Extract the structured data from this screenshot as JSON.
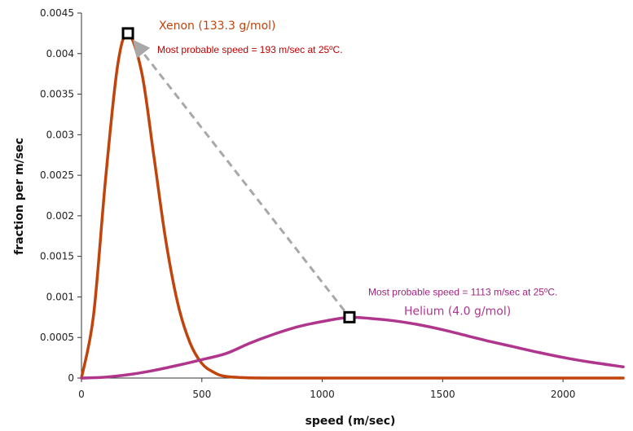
{
  "chart_data": {
    "type": "line",
    "title": "",
    "xlabel": "speed (m/sec)",
    "ylabel": "fraction per m/sec",
    "xlim": [
      0,
      2250
    ],
    "ylim": [
      0,
      0.0045
    ],
    "x_ticks": [
      0,
      500,
      1000,
      1500,
      2000
    ],
    "x_tick_labels": [
      "0",
      "500",
      "1000",
      "1500",
      "2000"
    ],
    "y_ticks": [
      0,
      0.0005,
      0.001,
      0.0015,
      0.002,
      0.0025,
      0.003,
      0.0035,
      0.004,
      0.0045
    ],
    "y_tick_labels": [
      "0",
      "0.0005",
      "0.001",
      "0.0015",
      "0.002",
      "0.0025",
      "0.003",
      "0.0035",
      "0.004",
      "0.0045"
    ],
    "grid": false,
    "series": [
      {
        "name": "Xenon (133.3 g/mol)",
        "color": "#c0440c",
        "x": [
          0,
          50,
          100,
          150,
          193,
          250,
          300,
          350,
          400,
          450,
          500,
          550,
          600,
          700,
          800,
          1000,
          1500,
          2000,
          2250
        ],
        "y": [
          0,
          0.00077,
          0.00245,
          0.00385,
          0.00425,
          0.00377,
          0.00275,
          0.0017,
          0.00092,
          0.00044,
          0.00018,
          7e-05,
          2e-05,
          2e-06,
          0,
          0,
          0,
          0,
          0
        ]
      },
      {
        "name": "Helium (4.0 g/mol)",
        "color": "#b0358c",
        "x": [
          0,
          100,
          200,
          300,
          400,
          500,
          600,
          700,
          800,
          900,
          1000,
          1113,
          1200,
          1300,
          1400,
          1500,
          1600,
          1700,
          1800,
          1900,
          2000,
          2100,
          2250
        ],
        "y": [
          0,
          1.15e-05,
          4.37e-05,
          9.37e-05,
          0.000157,
          0.000227,
          0.000302,
          0.000431,
          0.000541,
          0.000633,
          0.000697,
          0.00075,
          0.000735,
          0.000705,
          0.000658,
          0.000596,
          0.000522,
          0.000449,
          0.000382,
          0.000315,
          0.000254,
          0.000202,
          0.000138
        ]
      }
    ],
    "annotations": [
      {
        "name": "Xenon (133.3 g/mol)",
        "note": "Most probable speed = 193 m/sec at 25ºC.",
        "x": 193,
        "y": 0.00425,
        "color_name": "#c0440c",
        "color_note": "#c00000"
      },
      {
        "name": "Helium (4.0 g/mol)",
        "note": "Most probable speed = 1113 m/sec at 25ºC.",
        "x": 1113,
        "y": 0.00075,
        "color_name": "#b0358c",
        "color_note": "#a0247c"
      }
    ],
    "arrow": {
      "from": [
        1113,
        0.00075
      ],
      "to": [
        193,
        0.00425
      ],
      "style": "dashed",
      "color": "#a8a8a8"
    }
  }
}
